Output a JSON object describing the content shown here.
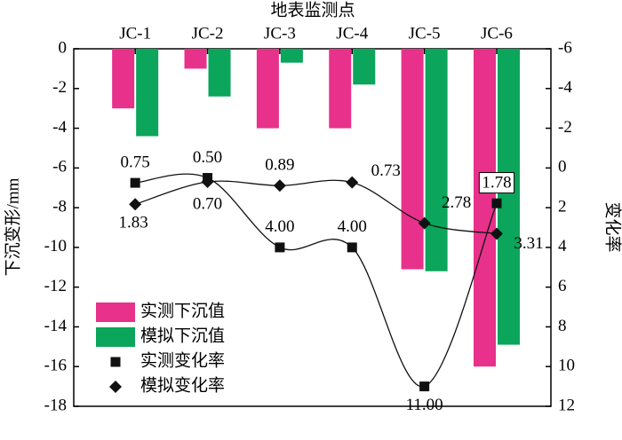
{
  "chart_data": {
    "type": "bar-line",
    "x_label": "地表监测点",
    "y_label": "下沉变形/mm",
    "y2_label": "变化率",
    "categories": [
      "JC-1",
      "JC-2",
      "JC-3",
      "JC-4",
      "JC-5",
      "JC-6"
    ],
    "ylim": [
      0,
      -18
    ],
    "yticks": [
      0,
      -2,
      -4,
      -6,
      -8,
      -10,
      -12,
      -14,
      -16,
      -18
    ],
    "y2lim": [
      -6,
      12
    ],
    "y2ticks": [
      -6,
      -4,
      -2,
      0,
      2,
      4,
      6,
      8,
      10,
      12
    ],
    "series": [
      {
        "name": "实测下沉值",
        "type": "bar",
        "color": "#e8318b",
        "values": [
          -3.0,
          -1.0,
          -4.0,
          -4.0,
          -11.1,
          -16.0
        ]
      },
      {
        "name": "模拟下沉值",
        "type": "bar",
        "color": "#0ba55b",
        "values": [
          -4.4,
          -2.4,
          -0.7,
          -1.8,
          -11.2,
          -14.9
        ]
      },
      {
        "name": "实测变化率",
        "type": "line",
        "axis": "y2",
        "marker": "square",
        "color": "#111111",
        "values": [
          0.75,
          0.5,
          4.0,
          4.0,
          11.0,
          1.78
        ],
        "value_labels": [
          "0.75",
          "0.50",
          "4.00",
          "4.00",
          "11.00",
          "1.78"
        ]
      },
      {
        "name": "模拟变化率",
        "type": "line",
        "axis": "y2",
        "marker": "diamond",
        "color": "#111111",
        "values": [
          1.83,
          0.7,
          0.89,
          0.73,
          2.78,
          3.31
        ],
        "value_labels": [
          "1.83",
          "0.70",
          "0.89",
          "0.73",
          "2.78",
          "3.31"
        ]
      }
    ]
  }
}
